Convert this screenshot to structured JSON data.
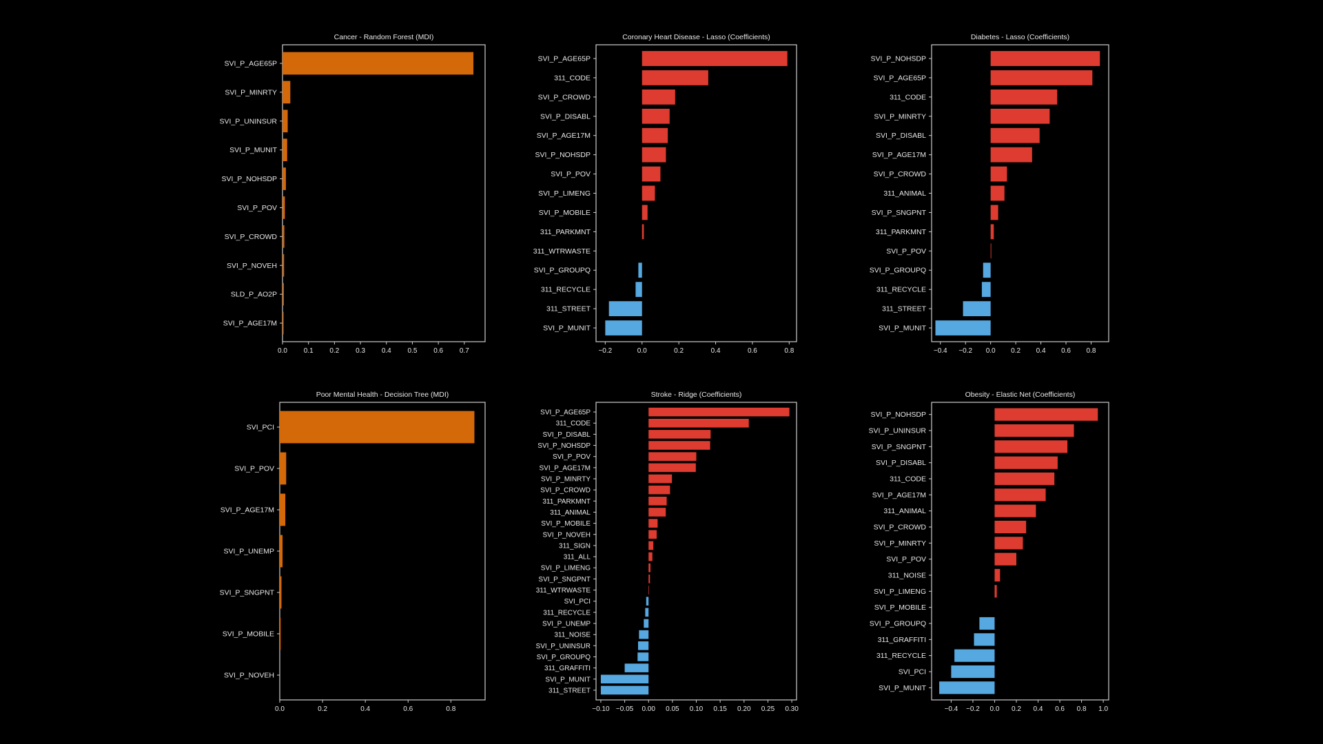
{
  "colors": {
    "background": "#000000",
    "importance": "#D4690A",
    "positive": "#DE3C30",
    "negative": "#56A8E0",
    "axis": "#cfcfcf",
    "text": "#e8e8e8"
  },
  "chart_data": [
    {
      "type": "bar",
      "orientation": "horizontal",
      "title": "Cancer - Random Forest (MDI)",
      "xlim": [
        0,
        0.78
      ],
      "xticks": [
        0.0,
        0.1,
        0.2,
        0.3,
        0.4,
        0.5,
        0.6,
        0.7
      ],
      "xticklabels": [
        "0.0",
        "0.1",
        "0.2",
        "0.3",
        "0.4",
        "0.5",
        "0.6",
        "0.7"
      ],
      "bar_fraction": 0.78,
      "color_mode": "importance",
      "categories": [
        "SVI_P_AGE65P",
        "SVI_P_MINRTY",
        "SVI_P_UNINSUR",
        "SVI_P_MUNIT",
        "SVI_P_NOHSDP",
        "SVI_P_POV",
        "SVI_P_CROWD",
        "SVI_P_NOVEH",
        "SLD_P_AO2P",
        "SVI_P_AGE17M"
      ],
      "values": [
        0.735,
        0.03,
        0.02,
        0.018,
        0.013,
        0.009,
        0.007,
        0.006,
        0.005,
        0.004
      ]
    },
    {
      "type": "bar",
      "orientation": "horizontal",
      "title": "Coronary Heart Disease - Lasso (Coefficients)",
      "xlim": [
        -0.25,
        0.84
      ],
      "xticks": [
        -0.2,
        0.0,
        0.2,
        0.4,
        0.6,
        0.8
      ],
      "xticklabels": [
        "−0.2",
        "0.0",
        "0.2",
        "0.4",
        "0.6",
        "0.8"
      ],
      "bar_fraction": 0.78,
      "color_mode": "sign",
      "categories": [
        "SVI_P_AGE65P",
        "311_CODE",
        "SVI_P_CROWD",
        "SVI_P_DISABL",
        "SVI_P_AGE17M",
        "SVI_P_NOHSDP",
        "SVI_P_POV",
        "SVI_P_LIMENG",
        "SVI_P_MOBILE",
        "311_PARKMNT",
        "311_WTRWASTE",
        "SVI_P_GROUPQ",
        "311_RECYCLE",
        "311_STREET",
        "SVI_P_MUNIT"
      ],
      "values": [
        0.79,
        0.36,
        0.18,
        0.15,
        0.14,
        0.13,
        0.1,
        0.07,
        0.03,
        0.01,
        0.0,
        -0.02,
        -0.035,
        -0.18,
        -0.2
      ]
    },
    {
      "type": "bar",
      "orientation": "horizontal",
      "title": "Diabetes - Lasso (Coefficients)",
      "xlim": [
        -0.47,
        0.94
      ],
      "xticks": [
        -0.4,
        -0.2,
        0.0,
        0.2,
        0.4,
        0.6,
        0.8
      ],
      "xticklabels": [
        "−0.4",
        "−0.2",
        "0.0",
        "0.2",
        "0.4",
        "0.6",
        "0.8"
      ],
      "bar_fraction": 0.78,
      "color_mode": "sign",
      "categories": [
        "SVI_P_NOHSDP",
        "SVI_P_AGE65P",
        "311_CODE",
        "SVI_P_MINRTY",
        "SVI_P_DISABL",
        "SVI_P_AGE17M",
        "SVI_P_CROWD",
        "311_ANIMAL",
        "SVI_P_SNGPNT",
        "311_PARKMNT",
        "SVI_P_POV",
        "SVI_P_GROUPQ",
        "311_RECYCLE",
        "311_STREET",
        "SVI_P_MUNIT"
      ],
      "values": [
        0.87,
        0.81,
        0.53,
        0.47,
        0.39,
        0.33,
        0.13,
        0.11,
        0.06,
        0.025,
        0.005,
        -0.06,
        -0.07,
        -0.22,
        -0.44
      ]
    },
    {
      "type": "bar",
      "orientation": "horizontal",
      "title": "Poor Mental Health - Decision Tree (MDI)",
      "xlim": [
        0,
        0.96
      ],
      "xticks": [
        0.0,
        0.2,
        0.4,
        0.6,
        0.8
      ],
      "xticklabels": [
        "0.0",
        "0.2",
        "0.4",
        "0.6",
        "0.8"
      ],
      "bar_fraction": 0.78,
      "color_mode": "importance",
      "categories": [
        "SVI_PCI",
        "SVI_P_POV",
        "SVI_P_AGE17M",
        "SVI_P_UNEMP",
        "SVI_P_SNGPNT",
        "SVI_P_MOBILE",
        "SVI_P_NOVEH"
      ],
      "values": [
        0.91,
        0.03,
        0.026,
        0.013,
        0.008,
        0.004,
        0.0
      ]
    },
    {
      "type": "bar",
      "orientation": "horizontal",
      "title": "Stroke - Ridge (Coefficients)",
      "xlim": [
        -0.11,
        0.31
      ],
      "xticks": [
        -0.1,
        -0.05,
        0.0,
        0.05,
        0.1,
        0.15,
        0.2,
        0.25,
        0.3
      ],
      "xticklabels": [
        "−0.10",
        "−0.05",
        "0.00",
        "0.05",
        "0.10",
        "0.15",
        "0.20",
        "0.25",
        "0.30"
      ],
      "bar_fraction": 0.78,
      "color_mode": "sign",
      "categories": [
        "SVI_P_AGE65P",
        "311_CODE",
        "SVI_P_DISABL",
        "SVI_P_NOHSDP",
        "SVI_P_POV",
        "SVI_P_AGE17M",
        "SVI_P_MINRTY",
        "SVI_P_CROWD",
        "311_PARKMNT",
        "311_ANIMAL",
        "SVI_P_MOBILE",
        "SVI_P_NOVEH",
        "311_SIGN",
        "311_ALL",
        "SVI_P_LIMENG",
        "SVI_P_SNGPNT",
        "311_WTRWASTE",
        "SVI_PCI",
        "311_RECYCLE",
        "SVI_P_UNEMP",
        "311_NOISE",
        "SVI_P_UNINSUR",
        "SVI_P_GROUPQ",
        "311_GRAFFITI",
        "SVI_P_MUNIT",
        "311_STREET"
      ],
      "values": [
        0.295,
        0.21,
        0.13,
        0.129,
        0.1,
        0.099,
        0.049,
        0.045,
        0.038,
        0.036,
        0.019,
        0.017,
        0.01,
        0.008,
        0.004,
        0.003,
        0.001,
        -0.005,
        -0.007,
        -0.01,
        -0.02,
        -0.022,
        -0.023,
        -0.05,
        -0.1,
        -0.1
      ]
    },
    {
      "type": "bar",
      "orientation": "horizontal",
      "title": "Obesity - Elastic Net (Coefficients)",
      "xlim": [
        -0.58,
        1.05
      ],
      "xticks": [
        -0.4,
        -0.2,
        0.0,
        0.2,
        0.4,
        0.6,
        0.8,
        1.0
      ],
      "xticklabels": [
        "−0.4",
        "−0.2",
        "0.0",
        "0.2",
        "0.4",
        "0.6",
        "0.8",
        "1.0"
      ],
      "bar_fraction": 0.78,
      "color_mode": "sign",
      "categories": [
        "SVI_P_NOHSDP",
        "SVI_P_UNINSUR",
        "SVI_P_SNGPNT",
        "SVI_P_DISABL",
        "311_CODE",
        "SVI_P_AGE17M",
        "311_ANIMAL",
        "SVI_P_CROWD",
        "SVI_P_MINRTY",
        "SVI_P_POV",
        "311_NOISE",
        "SVI_P_LIMENG",
        "SVI_P_MOBILE",
        "SVI_P_GROUPQ",
        "311_GRAFFITI",
        "311_RECYCLE",
        "SVI_PCI",
        "SVI_P_MUNIT"
      ],
      "values": [
        0.95,
        0.73,
        0.67,
        0.58,
        0.55,
        0.47,
        0.38,
        0.29,
        0.26,
        0.2,
        0.05,
        0.02,
        0.0,
        -0.14,
        -0.19,
        -0.37,
        -0.4,
        -0.51
      ]
    }
  ]
}
